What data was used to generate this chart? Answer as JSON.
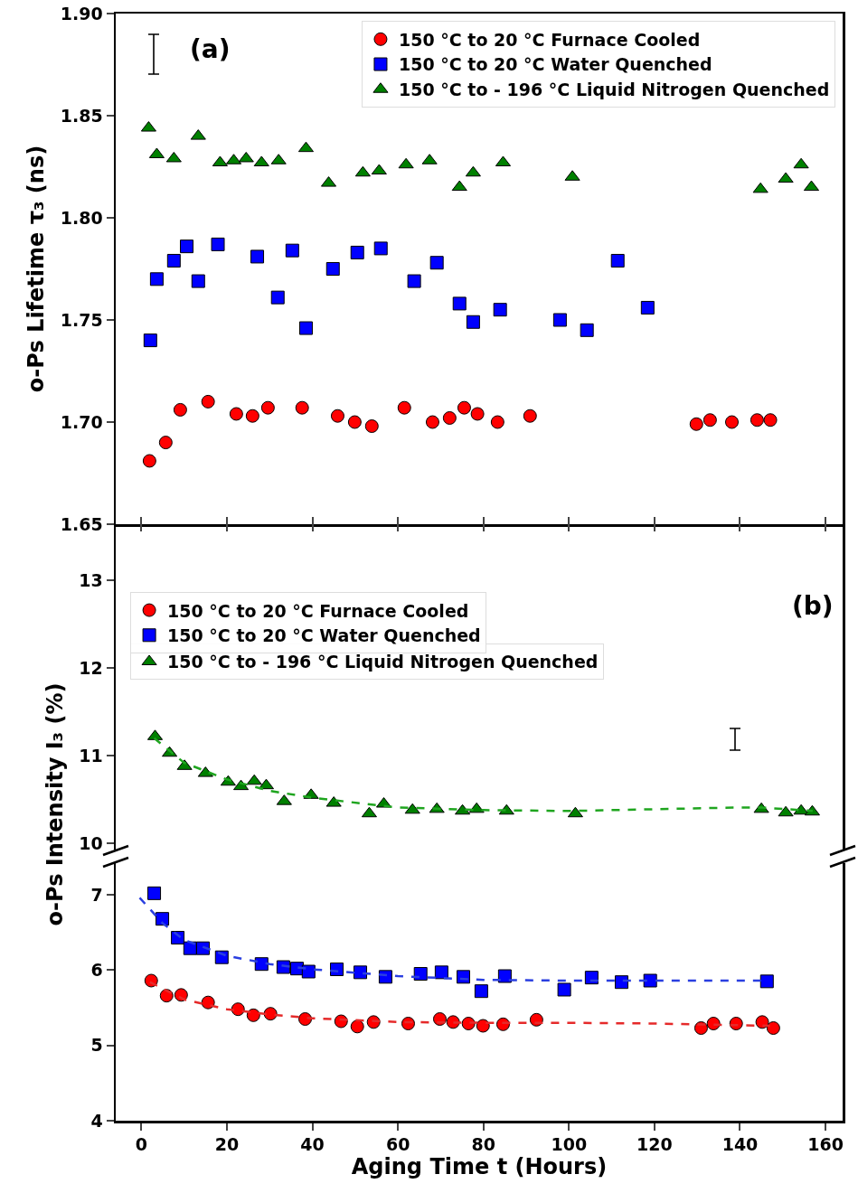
{
  "chart_data": [
    {
      "type": "scatter",
      "ylabel": "o-Ps Lifetime τ₃ (ns)",
      "annotations": [
        "(a)"
      ],
      "legend": "top right",
      "tick_labels": "y",
      "xlim": [
        -6,
        164
      ],
      "xticks": [
        {
          "value": 0,
          "label": null
        },
        {
          "value": 20,
          "label": null
        },
        {
          "value": 40,
          "label": null
        },
        {
          "value": 60,
          "label": null
        },
        {
          "value": 80,
          "label": null
        },
        {
          "value": 100,
          "label": null
        },
        {
          "value": 120,
          "label": null
        },
        {
          "value": 140,
          "label": null
        },
        {
          "value": 160,
          "label": null
        }
      ],
      "ylim": [
        1.65,
        1.9
      ],
      "yticks": [
        1.65,
        {
          "value": 1.7,
          "label": "1.70"
        },
        1.75,
        {
          "value": 1.8,
          "label": "1.80"
        },
        1.85,
        {
          "value": 1.9,
          "label": "1.90"
        }
      ],
      "series": [
        {
          "name": "150 °C to 20 °C Furnace Cooled",
          "color": "#ff0000",
          "marker": "circle",
          "x": [
            1.9,
            5.7,
            9.1,
            15.6,
            22.2,
            26.0,
            29.6,
            37.6,
            45.9,
            49.9,
            53.9,
            61.5,
            68.1,
            72.1,
            75.5,
            78.6,
            83.3,
            90.9,
            129.8,
            133.0,
            138.1,
            144.0,
            147.1
          ],
          "values": [
            1.681,
            1.69,
            1.706,
            1.71,
            1.704,
            1.703,
            1.707,
            1.707,
            1.703,
            1.7,
            1.698,
            1.707,
            1.7,
            1.702,
            1.707,
            1.704,
            1.7,
            1.703,
            1.699,
            1.701,
            1.7,
            1.701,
            1.701
          ]
        },
        {
          "name": "150 °C to 20 °C Water Quenched",
          "color": "#0000ff",
          "marker": "square",
          "x": [
            2.1,
            3.6,
            7.6,
            10.6,
            13.3,
            17.9,
            27.1,
            31.9,
            35.3,
            38.5,
            44.8,
            50.5,
            56.0,
            63.8,
            69.1,
            74.4,
            77.6,
            83.9,
            97.9,
            104.2,
            111.4,
            118.4
          ],
          "values": [
            1.74,
            1.77,
            1.779,
            1.786,
            1.769,
            1.787,
            1.781,
            1.761,
            1.784,
            1.746,
            1.775,
            1.783,
            1.785,
            1.769,
            1.778,
            1.758,
            1.749,
            1.755,
            1.75,
            1.745,
            1.779,
            1.756
          ]
        },
        {
          "name": "150 °C to - 196 °C Liquid Nitrogen Quenched",
          "color": "#008000",
          "marker": "triangle",
          "x": [
            1.7,
            3.6,
            7.6,
            13.3,
            18.4,
            21.6,
            24.5,
            28.1,
            32.1,
            38.5,
            43.8,
            51.8,
            55.6,
            61.9,
            67.4,
            74.4,
            77.6,
            84.6,
            100.8,
            144.8,
            150.7,
            154.3,
            156.7
          ],
          "values": [
            1.844,
            1.831,
            1.829,
            1.84,
            1.827,
            1.828,
            1.829,
            1.827,
            1.828,
            1.834,
            1.817,
            1.822,
            1.823,
            1.826,
            1.828,
            1.815,
            1.822,
            1.827,
            1.82,
            1.814,
            1.819,
            1.826,
            1.815
          ]
        }
      ]
    },
    {
      "type": "scatter",
      "annotations": [
        "(b)"
      ],
      "legend": "top left",
      "tick_labels": "y",
      "xlim": [
        -6,
        164
      ],
      "xticks": [
        {
          "value": 0,
          "label": null
        },
        {
          "value": 20,
          "label": null
        },
        {
          "value": 40,
          "label": null
        },
        {
          "value": 60,
          "label": null
        },
        {
          "value": 80,
          "label": null
        },
        {
          "value": 100,
          "label": null
        },
        {
          "value": 120,
          "label": null
        },
        {
          "value": 140,
          "label": null
        },
        {
          "value": 160,
          "label": null
        }
      ],
      "ylim": [
        9.93,
        13.64
      ],
      "yticks": [
        10,
        11,
        12,
        13
      ],
      "series": [
        {
          "name": "150 °C to - 196 °C Liquid Nitrogen Quenched",
          "color": "#008000",
          "marker": "triangle",
          "x": [
            3.2,
            6.6,
            10.1,
            15.0,
            20.3,
            23.3,
            26.4,
            29.2,
            33.4,
            39.7,
            45.0,
            53.3,
            56.7,
            63.4,
            69.1,
            75.1,
            78.4,
            85.4,
            101.5,
            145.0,
            150.7,
            154.3,
            156.9
          ],
          "values": [
            11.22,
            11.03,
            10.88,
            10.8,
            10.7,
            10.65,
            10.71,
            10.66,
            10.48,
            10.55,
            10.46,
            10.34,
            10.45,
            10.38,
            10.39,
            10.37,
            10.39,
            10.37,
            10.34,
            10.39,
            10.35,
            10.37,
            10.36
          ]
        },
        {
          "type": "line",
          "color": "#1fa51f",
          "marker": "none",
          "line_style": "dashed",
          "x": [
            3,
            10,
            20,
            30,
            40,
            60,
            80,
            100,
            120,
            140,
            145,
            157
          ],
          "values": [
            11.2,
            10.92,
            10.73,
            10.6,
            10.52,
            10.41,
            10.38,
            10.37,
            10.39,
            10.41,
            10.41,
            10.37
          ]
        }
      ]
    },
    {
      "type": "scatter",
      "xlabel": "Aging Time t (Hours)",
      "ylabel": "o-Ps Intensity I₃ (%)",
      "legend": "top left",
      "xlim": [
        -6,
        164
      ],
      "xticks": [
        0,
        20,
        40,
        60,
        80,
        100,
        120,
        140,
        160
      ],
      "ylim": [
        4,
        7.42
      ],
      "yticks": [
        4,
        5,
        6,
        7
      ],
      "series": [
        {
          "name": "150 °C to 20 °C Furnace Cooled",
          "color": "#ff0000",
          "marker": "circle",
          "x": [
            2.3,
            5.9,
            9.3,
            15.6,
            22.6,
            26.2,
            30.2,
            38.3,
            46.7,
            50.5,
            54.3,
            62.4,
            69.8,
            72.9,
            76.5,
            79.9,
            84.6,
            92.4,
            130.9,
            133.8,
            139.1,
            145.2,
            147.8
          ],
          "values": [
            5.86,
            5.66,
            5.67,
            5.57,
            5.48,
            5.4,
            5.42,
            5.35,
            5.32,
            5.25,
            5.31,
            5.29,
            5.35,
            5.31,
            5.29,
            5.26,
            5.28,
            5.34,
            5.23,
            5.29,
            5.29,
            5.31,
            5.23
          ]
        },
        {
          "name": "150 °C to 20 °C Water Quenched",
          "color": "#0000ff",
          "marker": "square",
          "x": [
            3.0,
            4.9,
            8.5,
            11.4,
            14.4,
            18.8,
            28.1,
            33.2,
            36.4,
            39.1,
            45.7,
            51.2,
            57.1,
            65.3,
            70.2,
            75.3,
            79.5,
            85.0,
            98.9,
            105.3,
            112.3,
            119.0,
            146.3
          ],
          "values": [
            7.02,
            6.68,
            6.43,
            6.29,
            6.29,
            6.17,
            6.08,
            6.04,
            6.02,
            5.98,
            6.01,
            5.97,
            5.91,
            5.95,
            5.97,
            5.91,
            5.72,
            5.92,
            5.74,
            5.9,
            5.84,
            5.86,
            5.85
          ]
        },
        {
          "type": "line",
          "color": "#e52a2a",
          "marker": "none",
          "line_style": "dashed",
          "x": [
            2,
            10,
            20,
            30,
            40,
            60,
            80,
            100,
            120,
            147
          ],
          "values": [
            5.84,
            5.61,
            5.48,
            5.41,
            5.36,
            5.31,
            5.3,
            5.3,
            5.29,
            5.26
          ]
        },
        {
          "type": "line",
          "color": "#2a3fe0",
          "marker": "none",
          "line_style": "dashed",
          "x": [
            -0.4,
            5,
            10,
            20,
            30,
            40,
            60,
            80,
            100,
            120,
            145
          ],
          "values": [
            6.96,
            6.62,
            6.4,
            6.19,
            6.08,
            6.01,
            5.92,
            5.87,
            5.86,
            5.86,
            5.86
          ]
        }
      ]
    }
  ]
}
